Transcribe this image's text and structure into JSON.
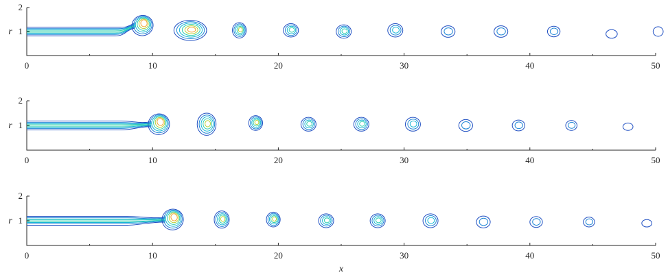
{
  "chart_data": [
    {
      "type": "contour",
      "xlabel": "",
      "ylabel": "r",
      "xlim": [
        0,
        50
      ],
      "ylim": [
        0,
        2
      ],
      "xticks": [
        "0",
        "10",
        "20",
        "30",
        "40",
        "50"
      ],
      "yticks": [
        "1",
        "2"
      ],
      "jet": {
        "x_end": 7.0
      },
      "head": {
        "x": 9.2,
        "y": 1.25
      },
      "vortices": [
        {
          "x": 13.0,
          "y": 1.05,
          "rx": 1.3,
          "ry": 0.42,
          "levels": 6
        },
        {
          "x": 16.9,
          "y": 1.05,
          "rx": 0.55,
          "ry": 0.32,
          "levels": 5
        },
        {
          "x": 21.0,
          "y": 1.05,
          "rx": 0.6,
          "ry": 0.28,
          "levels": 4
        },
        {
          "x": 25.2,
          "y": 1.0,
          "rx": 0.6,
          "ry": 0.28,
          "levels": 4
        },
        {
          "x": 29.3,
          "y": 1.05,
          "rx": 0.6,
          "ry": 0.28,
          "levels": 3
        },
        {
          "x": 33.5,
          "y": 1.0,
          "rx": 0.55,
          "ry": 0.24,
          "levels": 2
        },
        {
          "x": 37.7,
          "y": 1.0,
          "rx": 0.55,
          "ry": 0.24,
          "levels": 2
        },
        {
          "x": 41.9,
          "y": 1.0,
          "rx": 0.5,
          "ry": 0.22,
          "levels": 2
        },
        {
          "x": 46.5,
          "y": 0.9,
          "rx": 0.45,
          "ry": 0.18,
          "levels": 1
        },
        {
          "x": 50.2,
          "y": 1.0,
          "rx": 0.4,
          "ry": 0.2,
          "levels": 1
        }
      ]
    },
    {
      "type": "contour",
      "xlabel": "",
      "ylabel": "r",
      "xlim": [
        0,
        50
      ],
      "ylim": [
        0,
        2
      ],
      "xticks": [
        "0",
        "10",
        "20",
        "30",
        "40",
        "50"
      ],
      "yticks": [
        "1",
        "2"
      ],
      "jet": {
        "x_end": 7.5
      },
      "head": {
        "x": 10.5,
        "y": 1.05
      },
      "vortices": [
        {
          "x": 14.3,
          "y": 1.05,
          "rx": 0.75,
          "ry": 0.45,
          "levels": 5
        },
        {
          "x": 18.2,
          "y": 1.1,
          "rx": 0.55,
          "ry": 0.3,
          "levels": 5
        },
        {
          "x": 22.4,
          "y": 1.05,
          "rx": 0.6,
          "ry": 0.28,
          "levels": 4
        },
        {
          "x": 26.6,
          "y": 1.05,
          "rx": 0.6,
          "ry": 0.28,
          "levels": 4
        },
        {
          "x": 30.7,
          "y": 1.05,
          "rx": 0.6,
          "ry": 0.28,
          "levels": 3
        },
        {
          "x": 34.9,
          "y": 1.0,
          "rx": 0.55,
          "ry": 0.24,
          "levels": 2
        },
        {
          "x": 39.1,
          "y": 1.0,
          "rx": 0.5,
          "ry": 0.22,
          "levels": 2
        },
        {
          "x": 43.3,
          "y": 1.0,
          "rx": 0.45,
          "ry": 0.2,
          "levels": 2
        },
        {
          "x": 47.8,
          "y": 0.95,
          "rx": 0.4,
          "ry": 0.15,
          "levels": 1
        }
      ]
    },
    {
      "type": "contour",
      "xlabel": "x",
      "ylabel": "r",
      "xlim": [
        0,
        50
      ],
      "ylim": [
        0,
        2
      ],
      "xticks": [
        "0",
        "10",
        "20",
        "30",
        "40",
        "50"
      ],
      "yticks": [
        "1",
        "2"
      ],
      "jet": {
        "x_end": 8.0
      },
      "head": {
        "x": 11.6,
        "y": 1.05
      },
      "vortices": [
        {
          "x": 15.5,
          "y": 1.05,
          "rx": 0.6,
          "ry": 0.35,
          "levels": 5
        },
        {
          "x": 19.6,
          "y": 1.05,
          "rx": 0.55,
          "ry": 0.3,
          "levels": 5
        },
        {
          "x": 23.8,
          "y": 1.0,
          "rx": 0.6,
          "ry": 0.28,
          "levels": 4
        },
        {
          "x": 27.9,
          "y": 1.0,
          "rx": 0.6,
          "ry": 0.28,
          "levels": 4
        },
        {
          "x": 32.1,
          "y": 1.0,
          "rx": 0.6,
          "ry": 0.28,
          "levels": 3
        },
        {
          "x": 36.3,
          "y": 0.95,
          "rx": 0.55,
          "ry": 0.24,
          "levels": 2
        },
        {
          "x": 40.5,
          "y": 0.95,
          "rx": 0.5,
          "ry": 0.22,
          "levels": 2
        },
        {
          "x": 44.7,
          "y": 0.95,
          "rx": 0.45,
          "ry": 0.2,
          "levels": 2
        },
        {
          "x": 49.3,
          "y": 0.9,
          "rx": 0.4,
          "ry": 0.15,
          "levels": 1
        }
      ]
    }
  ],
  "colors": {
    "level_1": "#1f4fc2",
    "level_2": "#1d86d6",
    "level_3": "#16b7d5",
    "level_4": "#2fcfae",
    "level_5": "#b8d23a",
    "level_6": "#f2a530",
    "axis": "#262626"
  }
}
